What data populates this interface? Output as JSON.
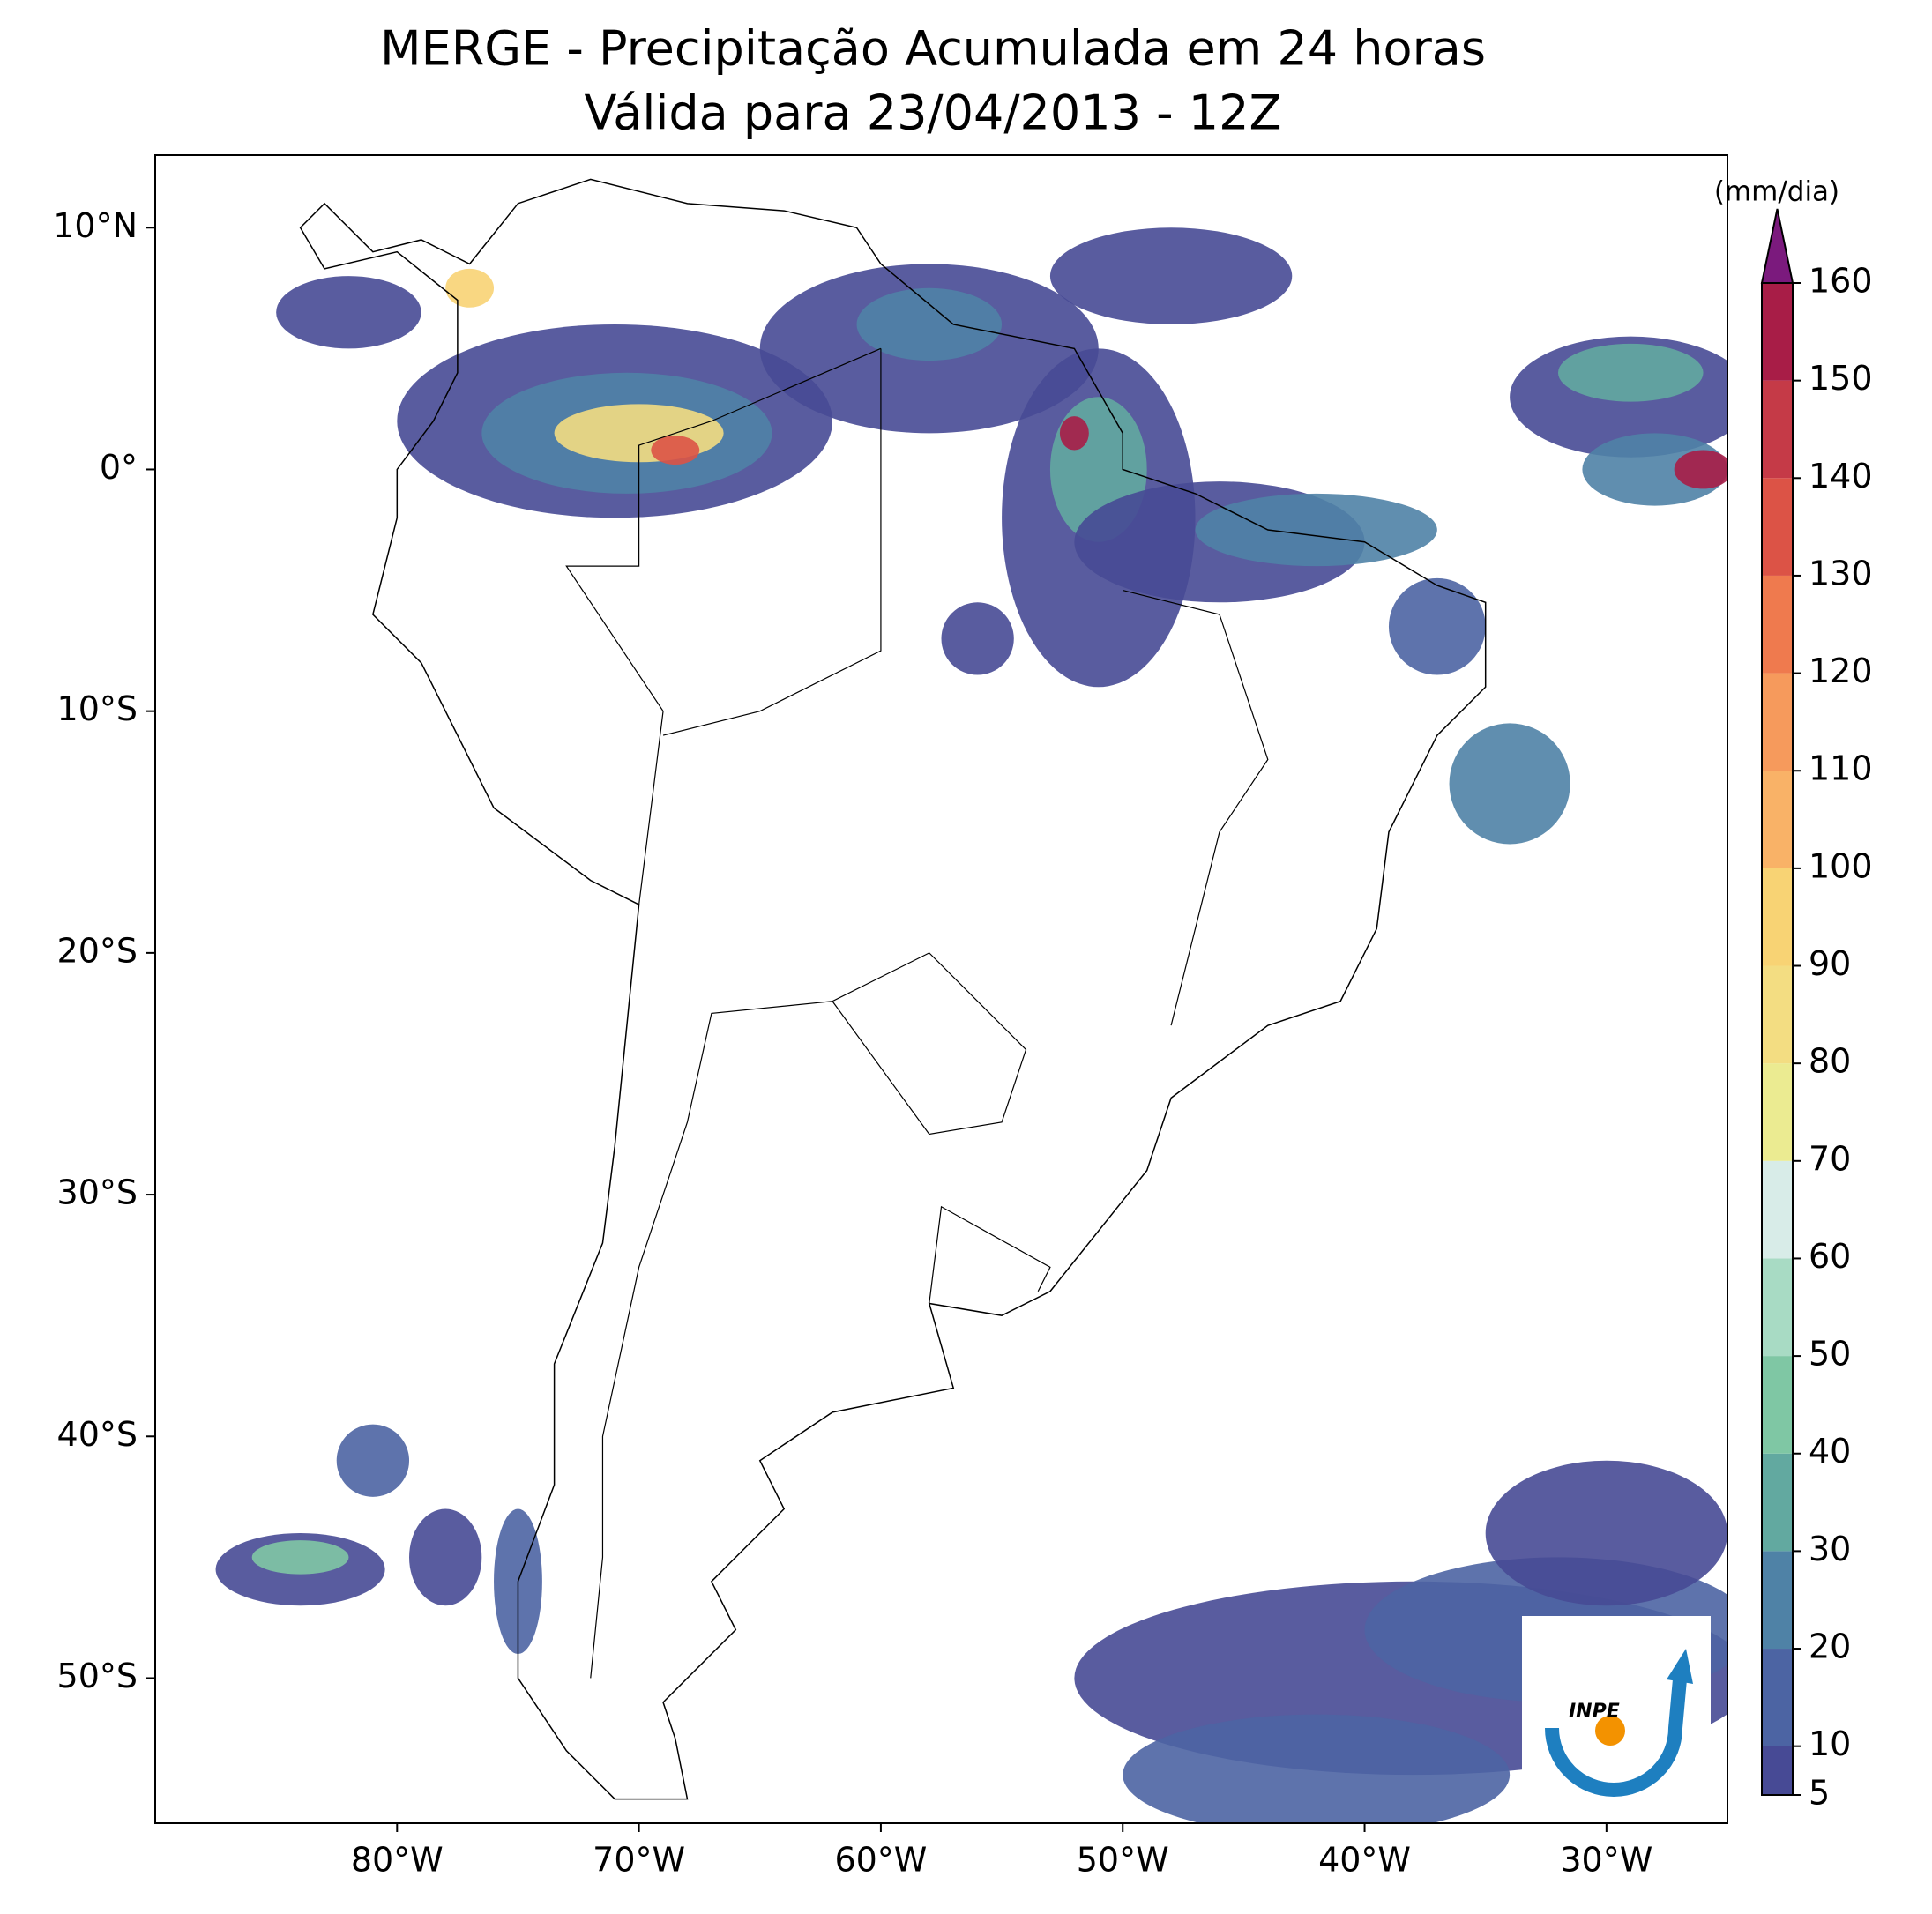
{
  "chart_data": {
    "type": "map",
    "title": "MERGE - Precipitação Acumulada em 24 horas",
    "subtitle": "Válida para 23/04/2013 - 12Z",
    "xlim": [
      -90,
      -25
    ],
    "ylim": [
      -56,
      13
    ],
    "xticks": [
      {
        "value": -80,
        "label": "80°W"
      },
      {
        "value": -70,
        "label": "70°W"
      },
      {
        "value": -60,
        "label": "60°W"
      },
      {
        "value": -50,
        "label": "50°W"
      },
      {
        "value": -40,
        "label": "40°W"
      },
      {
        "value": -30,
        "label": "30°W"
      }
    ],
    "yticks": [
      {
        "value": 10,
        "label": "10°N"
      },
      {
        "value": 0,
        "label": "0°"
      },
      {
        "value": -10,
        "label": "10°S"
      },
      {
        "value": -20,
        "label": "20°S"
      },
      {
        "value": -30,
        "label": "30°S"
      },
      {
        "value": -40,
        "label": "40°S"
      },
      {
        "value": -50,
        "label": "50°S"
      }
    ],
    "colorbar": {
      "label": "(mm/dia)",
      "lim": [
        5,
        160
      ],
      "ticks": [
        5,
        10,
        20,
        30,
        40,
        50,
        60,
        70,
        80,
        90,
        100,
        110,
        120,
        130,
        140,
        150,
        160
      ],
      "colors": [
        "#474a95",
        "#4c64a3",
        "#4f82a6",
        "#62a9a0",
        "#7fc7a4",
        "#a8dbc4",
        "#d8ece8",
        "#ebeb91",
        "#f3dd82",
        "#f8d374",
        "#f9b267",
        "#f69a5c",
        "#ef7a4e",
        "#dc5346",
        "#c53a47",
        "#a81d47"
      ],
      "over_color": "#7b1a7d"
    },
    "logo_text": "INPE"
  }
}
